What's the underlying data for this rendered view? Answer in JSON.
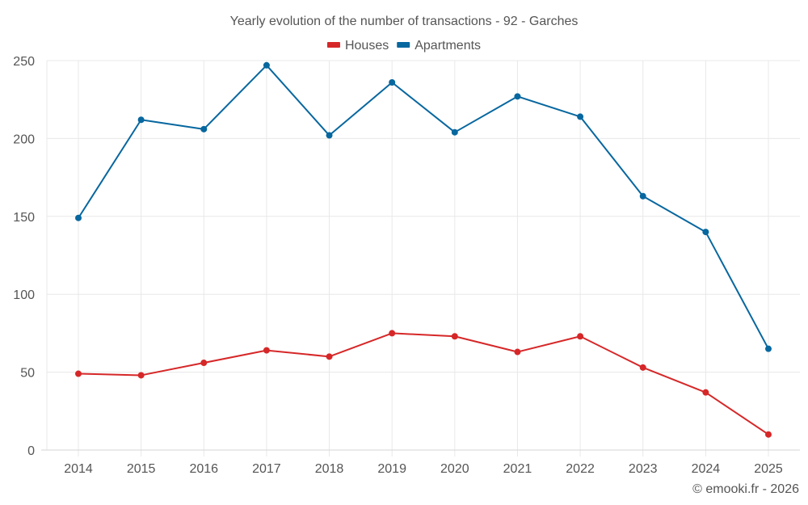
{
  "chart_data": {
    "type": "line",
    "title": "Yearly evolution of the number of transactions - 92 - Garches",
    "xlabel": "",
    "ylabel": "",
    "x": [
      "2014",
      "2015",
      "2016",
      "2017",
      "2018",
      "2019",
      "2020",
      "2021",
      "2022",
      "2023",
      "2024",
      "2025"
    ],
    "ylim": [
      0,
      250
    ],
    "yticks": [
      0,
      50,
      100,
      150,
      200,
      250
    ],
    "grid": true,
    "legend_position": "top-center",
    "series": [
      {
        "name": "Houses",
        "color": "#d62728",
        "values": [
          49,
          48,
          56,
          64,
          60,
          75,
          73,
          63,
          73,
          53,
          37,
          10
        ]
      },
      {
        "name": "Apartments",
        "color": "#07679f",
        "values": [
          149,
          212,
          206,
          247,
          202,
          236,
          204,
          227,
          214,
          163,
          140,
          65
        ]
      }
    ],
    "credit": "© emooki.fr - 2026"
  }
}
